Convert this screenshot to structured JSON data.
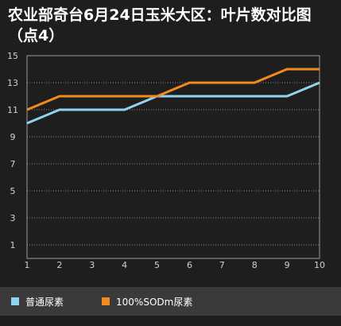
{
  "chart_data": {
    "type": "line",
    "title": "农业部奇台6月24日玉米大区：叶片数对比图（点4）",
    "x": [
      1,
      2,
      3,
      4,
      5,
      6,
      7,
      8,
      9,
      10
    ],
    "xlim": [
      1,
      10
    ],
    "ylim": [
      0,
      15
    ],
    "yticks": [
      1,
      3,
      5,
      7,
      9,
      11,
      13,
      15
    ],
    "grid": true,
    "legend_position": "bottom",
    "series": [
      {
        "name": "普通尿素",
        "color": "#8fd3f0",
        "values": [
          10,
          11,
          11,
          11,
          12,
          12,
          12,
          12,
          12,
          13
        ]
      },
      {
        "name": "100%SODm尿素",
        "color": "#f28a1e",
        "values": [
          11,
          12,
          12,
          12,
          12,
          13,
          13,
          13,
          14,
          14
        ]
      }
    ]
  }
}
